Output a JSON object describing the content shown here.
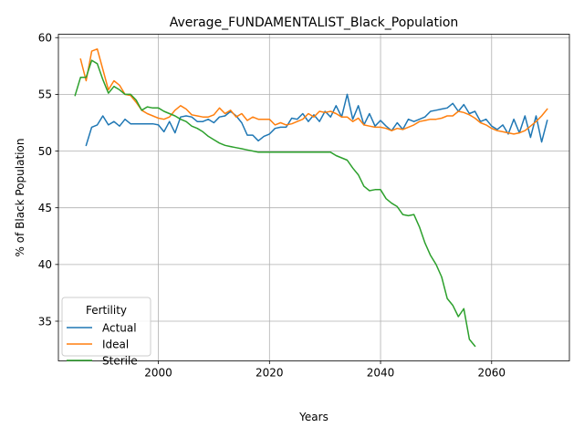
{
  "chart_data": {
    "type": "line",
    "title": "Average_FUNDAMENTALIST_Black_Population",
    "xlabel": "Years",
    "ylabel": "% of Black Population",
    "xlim": [
      1982,
      2074
    ],
    "ylim": [
      31.5,
      60.3
    ],
    "xticks": [
      2000,
      2020,
      2040,
      2060
    ],
    "yticks": [
      35,
      40,
      45,
      50,
      55,
      60
    ],
    "grid": true,
    "legend": {
      "title": "Fertility",
      "placement": "lower-left"
    },
    "series": [
      {
        "name": "Actual",
        "color": "#1f77b4",
        "x": [
          1987,
          1988,
          1989,
          1990,
          1991,
          1992,
          1993,
          1994,
          1995,
          1996,
          1997,
          1998,
          1999,
          2000,
          2001,
          2002,
          2003,
          2004,
          2005,
          2006,
          2007,
          2008,
          2009,
          2010,
          2011,
          2012,
          2013,
          2014,
          2015,
          2016,
          2017,
          2018,
          2019,
          2020,
          2021,
          2022,
          2023,
          2024,
          2025,
          2026,
          2027,
          2028,
          2029,
          2030,
          2031,
          2032,
          2033,
          2034,
          2035,
          2036,
          2037,
          2038,
          2039,
          2040,
          2041,
          2042,
          2043,
          2044,
          2045,
          2046,
          2047,
          2048,
          2049,
          2050,
          2051,
          2052,
          2053,
          2054,
          2055,
          2056,
          2057,
          2058,
          2059,
          2060,
          2061,
          2062,
          2063,
          2064,
          2065,
          2066,
          2067,
          2068,
          2069,
          2070
        ],
        "values": [
          50.5,
          52.1,
          52.3,
          53.1,
          52.3,
          52.6,
          52.2,
          52.8,
          52.4,
          52.4,
          52.4,
          52.4,
          52.4,
          52.3,
          51.7,
          52.6,
          51.6,
          53.0,
          53.1,
          53.0,
          52.6,
          52.6,
          52.8,
          52.5,
          53.0,
          53.1,
          53.5,
          53.1,
          52.5,
          51.4,
          51.4,
          50.9,
          51.3,
          51.5,
          52.0,
          52.1,
          52.1,
          52.9,
          52.8,
          53.3,
          52.6,
          53.2,
          52.6,
          53.5,
          53.0,
          54.0,
          53.0,
          55.0,
          52.8,
          54.0,
          52.3,
          53.3,
          52.2,
          52.7,
          52.2,
          51.8,
          52.5,
          51.9,
          52.8,
          52.6,
          52.8,
          53.0,
          53.5,
          53.6,
          53.7,
          53.8,
          54.2,
          53.5,
          54.1,
          53.3,
          53.5,
          52.6,
          52.8,
          52.2,
          51.9,
          52.3,
          51.5,
          52.8,
          51.6,
          53.1,
          51.2,
          53.1,
          50.8,
          52.7
        ]
      },
      {
        "name": "Ideal",
        "color": "#ff7f0e",
        "x": [
          1986,
          1987,
          1988,
          1989,
          1990,
          1991,
          1992,
          1993,
          1994,
          1995,
          1996,
          1997,
          1998,
          1999,
          2000,
          2001,
          2002,
          2003,
          2004,
          2005,
          2006,
          2007,
          2008,
          2009,
          2010,
          2011,
          2012,
          2013,
          2014,
          2015,
          2016,
          2017,
          2018,
          2019,
          2020,
          2021,
          2022,
          2023,
          2024,
          2025,
          2026,
          2027,
          2028,
          2029,
          2030,
          2031,
          2032,
          2033,
          2034,
          2035,
          2036,
          2037,
          2038,
          2039,
          2040,
          2041,
          2042,
          2043,
          2044,
          2045,
          2046,
          2047,
          2048,
          2049,
          2050,
          2051,
          2052,
          2053,
          2054,
          2055,
          2056,
          2057,
          2058,
          2059,
          2060,
          2061,
          2062,
          2063,
          2064,
          2065,
          2066,
          2067,
          2068,
          2069,
          2070
        ],
        "values": [
          58.1,
          56.2,
          58.8,
          59.0,
          57.2,
          55.4,
          56.2,
          55.8,
          55.0,
          54.9,
          54.3,
          53.6,
          53.3,
          53.1,
          52.9,
          52.8,
          53.0,
          53.6,
          54.0,
          53.7,
          53.2,
          53.1,
          53.0,
          53.0,
          53.2,
          53.8,
          53.3,
          53.6,
          53.0,
          53.3,
          52.7,
          53.0,
          52.8,
          52.8,
          52.8,
          52.3,
          52.5,
          52.3,
          52.4,
          52.6,
          52.8,
          53.3,
          53.0,
          53.5,
          53.4,
          53.5,
          53.3,
          53.0,
          53.0,
          52.6,
          52.9,
          52.3,
          52.2,
          52.1,
          52.1,
          52.0,
          51.8,
          52.0,
          51.9,
          52.1,
          52.3,
          52.6,
          52.7,
          52.8,
          52.8,
          52.9,
          53.1,
          53.1,
          53.5,
          53.4,
          53.2,
          52.9,
          52.5,
          52.3,
          52.0,
          51.8,
          51.7,
          51.6,
          51.5,
          51.6,
          51.8,
          52.2,
          52.6,
          53.1,
          53.7
        ]
      },
      {
        "name": "Sterile",
        "color": "#2ca02c",
        "x": [
          1985,
          1986,
          1987,
          1988,
          1989,
          1990,
          1991,
          1992,
          1993,
          1994,
          1995,
          1996,
          1997,
          1998,
          1999,
          2000,
          2001,
          2002,
          2003,
          2004,
          2005,
          2006,
          2007,
          2008,
          2009,
          2010,
          2011,
          2012,
          2013,
          2014,
          2015,
          2016,
          2017,
          2018,
          2019,
          2020,
          2021,
          2022,
          2023,
          2024,
          2025,
          2026,
          2027,
          2028,
          2029,
          2030,
          2031,
          2032,
          2033,
          2034,
          2035,
          2036,
          2037,
          2038,
          2039,
          2040,
          2041,
          2042,
          2043,
          2044,
          2045,
          2046,
          2047,
          2048,
          2049,
          2050,
          2051,
          2052,
          2053,
          2054,
          2055,
          2056,
          2057
        ],
        "values": [
          54.9,
          56.5,
          56.5,
          58.0,
          57.7,
          56.3,
          55.1,
          55.7,
          55.4,
          55.0,
          55.0,
          54.5,
          53.6,
          53.9,
          53.8,
          53.8,
          53.5,
          53.3,
          53.1,
          52.8,
          52.6,
          52.2,
          52.0,
          51.7,
          51.3,
          51.0,
          50.7,
          50.5,
          50.4,
          50.3,
          50.2,
          50.1,
          50.0,
          49.9,
          49.9,
          49.9,
          49.9,
          49.9,
          49.9,
          49.9,
          49.9,
          49.9,
          49.9,
          49.9,
          49.9,
          49.9,
          49.9,
          49.6,
          49.4,
          49.2,
          48.5,
          47.9,
          46.9,
          46.5,
          46.6,
          46.6,
          45.8,
          45.4,
          45.1,
          44.4,
          44.3,
          44.4,
          43.3,
          41.9,
          40.8,
          40.0,
          38.9,
          37.0,
          36.4,
          35.4,
          36.1,
          33.4,
          32.8
        ]
      }
    ]
  }
}
